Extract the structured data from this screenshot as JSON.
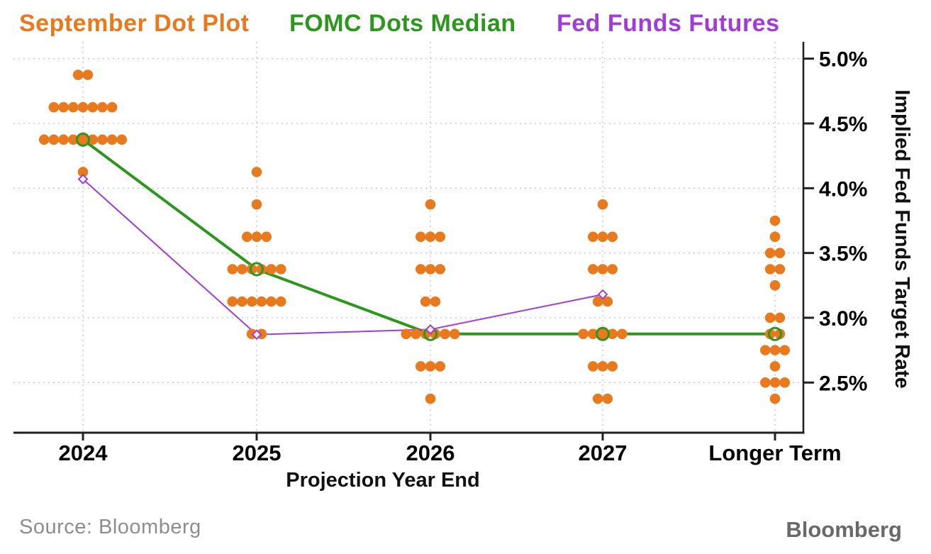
{
  "legend": {
    "items": [
      {
        "label": "September Dot Plot",
        "color": "#E8791D"
      },
      {
        "label": "FOMC Dots Median",
        "color": "#2D961E"
      },
      {
        "label": "Fed Funds Futures",
        "color": "#A03CD7"
      }
    ]
  },
  "footer": {
    "source": "Source: Bloomberg",
    "logo": "Bloomberg"
  },
  "chart_data": {
    "type": "scatter",
    "title": "September Dot Plot / FOMC Dots Median / Fed Funds Futures",
    "xlabel": "Projection Year End",
    "ylabel": "Implied Fed Funds Target Rate",
    "categories": [
      "2024",
      "2025",
      "2026",
      "2027",
      "Longer Term"
    ],
    "ylim": [
      2.11,
      5.13
    ],
    "yticks": [
      2.5,
      3.0,
      3.5,
      4.0,
      4.5,
      5.0
    ],
    "ytick_suffix": "%",
    "grid": true,
    "legend_position": "top",
    "colors": {
      "dots": "#E8791D",
      "median": "#2D961E",
      "futures": "#A03CD7",
      "gridline": "#C6C6C6",
      "axis": "#222222"
    },
    "dot_plot": {
      "name": "September Dot Plot",
      "dots_per_category": 19,
      "distributions": [
        [
          [
            4.875,
            2
          ],
          [
            4.625,
            7
          ],
          [
            4.375,
            9
          ],
          [
            4.125,
            1
          ]
        ],
        [
          [
            4.125,
            1
          ],
          [
            3.875,
            1
          ],
          [
            3.625,
            3
          ],
          [
            3.375,
            6
          ],
          [
            3.125,
            6
          ],
          [
            2.875,
            2
          ]
        ],
        [
          [
            3.875,
            1
          ],
          [
            3.625,
            3
          ],
          [
            3.375,
            3
          ],
          [
            3.125,
            2
          ],
          [
            2.875,
            6
          ],
          [
            2.625,
            3
          ],
          [
            2.375,
            1
          ]
        ],
        [
          [
            3.875,
            1
          ],
          [
            3.625,
            3
          ],
          [
            3.375,
            3
          ],
          [
            3.125,
            2
          ],
          [
            2.875,
            5
          ],
          [
            2.625,
            3
          ],
          [
            2.375,
            2
          ]
        ],
        [
          [
            3.75,
            1
          ],
          [
            3.625,
            1
          ],
          [
            3.5,
            2
          ],
          [
            3.375,
            2
          ],
          [
            3.25,
            1
          ],
          [
            3.0,
            2
          ],
          [
            2.875,
            2
          ],
          [
            2.75,
            3
          ],
          [
            2.625,
            1
          ],
          [
            2.5,
            3
          ],
          [
            2.375,
            1
          ]
        ]
      ]
    },
    "series": [
      {
        "name": "FOMC Dots Median",
        "marker": "circle",
        "values": [
          4.375,
          3.375,
          2.875,
          2.875,
          2.875
        ]
      },
      {
        "name": "Fed Funds Futures",
        "marker": "diamond",
        "values": [
          4.07,
          2.87,
          2.91,
          3.18,
          null
        ]
      }
    ]
  }
}
